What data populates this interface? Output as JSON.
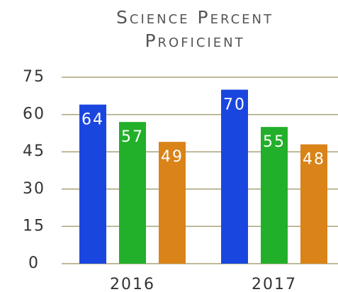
{
  "chart_data": {
    "type": "bar",
    "title": "Science Percent Proficient",
    "categories": [
      "2016",
      "2017"
    ],
    "series": [
      {
        "color": "#1a46e0",
        "values": [
          64,
          70
        ]
      },
      {
        "color": "#22b02a",
        "values": [
          57,
          55
        ]
      },
      {
        "color": "#d98318",
        "values": [
          49,
          48
        ]
      }
    ],
    "ylim": [
      0,
      75
    ],
    "yticks": [
      0,
      15,
      30,
      45,
      60,
      75
    ],
    "grid": true
  }
}
